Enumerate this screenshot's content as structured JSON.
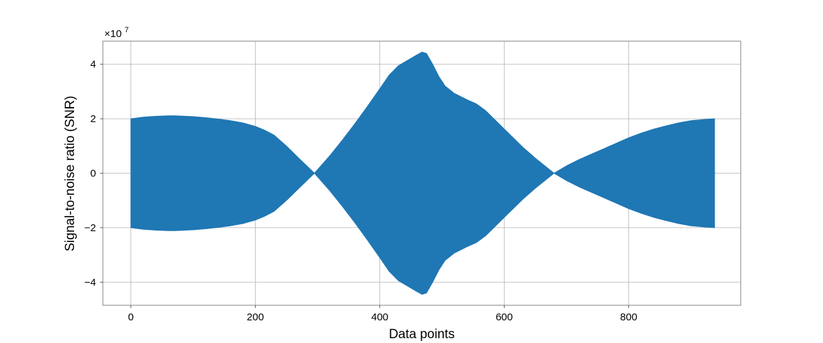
{
  "chart_data": {
    "type": "area",
    "title": "",
    "xlabel": "Data points",
    "ylabel": "Signal-to-noise ratio (SNR)",
    "y_offset_label": "×10",
    "y_offset_exponent": "7",
    "y_scale_factor": 10000000,
    "xlim": [
      -45,
      980
    ],
    "ylim": [
      -48500000,
      48500000
    ],
    "xticks": [
      0,
      200,
      400,
      600,
      800
    ],
    "xtick_labels": [
      "0",
      "200",
      "400",
      "600",
      "800"
    ],
    "yticks": [
      -40000000,
      -20000000,
      0,
      20000000,
      40000000
    ],
    "ytick_labels": [
      "−4",
      "−2",
      "0",
      "2",
      "4"
    ],
    "grid": true,
    "legend": "none",
    "color": "#1f77b4",
    "series": [
      {
        "x": [
          0,
          20,
          40,
          60,
          70,
          80,
          100,
          120,
          140,
          160,
          180,
          200,
          215,
          230,
          250,
          270,
          295,
          320,
          340,
          360,
          380,
          400,
          415,
          430,
          445,
          460,
          468,
          475,
          485,
          495,
          505,
          520,
          540,
          555,
          570,
          590,
          610,
          630,
          650,
          680,
          700,
          720,
          740,
          760,
          780,
          800,
          820,
          840,
          860,
          880,
          900,
          920,
          938
        ],
        "y_upper": [
          20000000,
          20600000,
          20900000,
          21100000,
          21100000,
          21000000,
          20800000,
          20400000,
          19900000,
          19300000,
          18500000,
          17200000,
          15800000,
          14000000,
          10000000,
          5500000,
          0,
          6500000,
          12200000,
          18200000,
          24500000,
          31000000,
          36000000,
          39500000,
          41500000,
          43500000,
          44500000,
          44000000,
          40000000,
          35500000,
          32000000,
          29300000,
          27000000,
          25500000,
          23000000,
          18500000,
          14000000,
          9500000,
          5500000,
          0,
          2700000,
          5000000,
          7000000,
          9000000,
          11000000,
          13000000,
          14700000,
          16200000,
          17400000,
          18500000,
          19300000,
          19700000,
          20000000
        ],
        "y_lower": [
          -20000000,
          -20600000,
          -20900000,
          -21100000,
          -21100000,
          -21000000,
          -20800000,
          -20400000,
          -19900000,
          -19300000,
          -18500000,
          -17200000,
          -15800000,
          -14000000,
          -10000000,
          -5500000,
          0,
          -6500000,
          -12200000,
          -18200000,
          -24500000,
          -31000000,
          -36000000,
          -39500000,
          -41500000,
          -43500000,
          -44500000,
          -44000000,
          -40000000,
          -35500000,
          -32000000,
          -29300000,
          -27000000,
          -25500000,
          -23000000,
          -18500000,
          -14000000,
          -9500000,
          -5500000,
          0,
          -2700000,
          -5000000,
          -7000000,
          -9000000,
          -11000000,
          -13000000,
          -14700000,
          -16200000,
          -17400000,
          -18500000,
          -19300000,
          -19700000,
          -20000000
        ]
      }
    ]
  }
}
